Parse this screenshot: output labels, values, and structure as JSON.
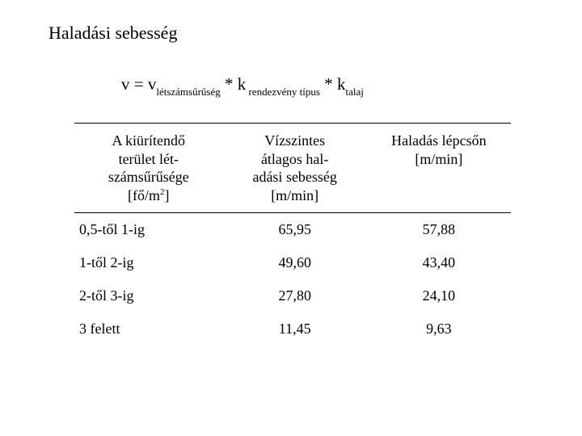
{
  "title": "Haladási sebesség",
  "formula": {
    "lhs_var": "v",
    "eq": " = ",
    "t1_var": "v",
    "t1_sub": "létszámsűrűség",
    "mul1": " * ",
    "t2_var": "k",
    "t2_sub": " rendezvény típus",
    "mul2": " * ",
    "t3_var": "k",
    "t3_sub": "talaj"
  },
  "table": {
    "headers": {
      "col1_lines": [
        "A kiürítendő",
        "terület lét-",
        "számsűrűsége"
      ],
      "col1_unit_open": "[fő/m",
      "col1_unit_sup": "2",
      "col1_unit_close": "]",
      "col2_lines": [
        "Vízszintes",
        "átlagos hal-",
        "adási sebesség"
      ],
      "col2_unit": "[m/min]",
      "col3_lines": [
        "Haladás lépcsőn"
      ],
      "col3_unit": "[m/min]"
    },
    "rows": [
      {
        "c1": "0,5-től 1-ig",
        "c2": "65,95",
        "c3": "57,88"
      },
      {
        "c1": "1-től 2-ig",
        "c2": "49,60",
        "c3": "43,40"
      },
      {
        "c1": "2-től 3-ig",
        "c2": "27,80",
        "c3": "24,10"
      },
      {
        "c1": "3 felett",
        "c2": "11,45",
        "c3": "9,63"
      }
    ],
    "style": {
      "border_color": "#000000",
      "font_size_header": 18,
      "font_size_body": 18,
      "background": "#ffffff"
    }
  }
}
